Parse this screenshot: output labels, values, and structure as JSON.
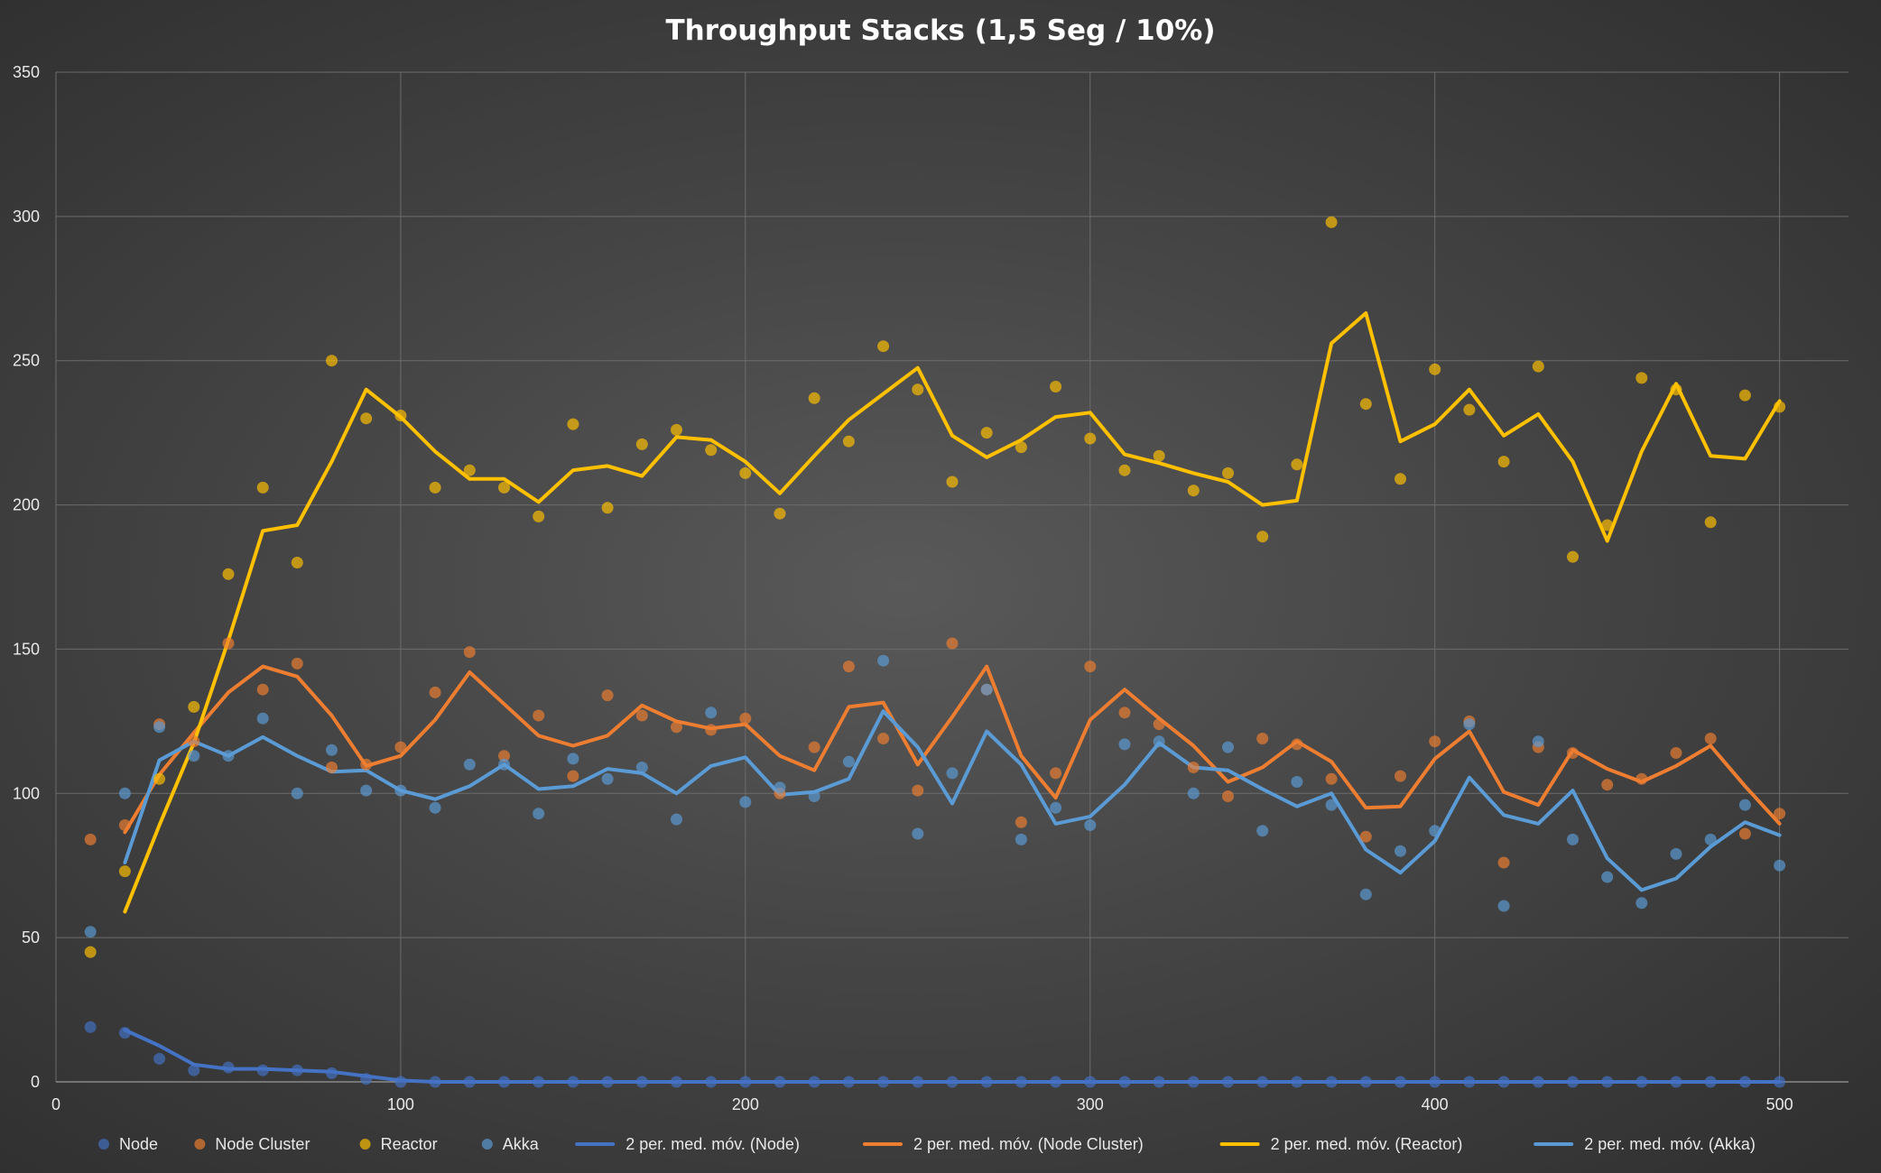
{
  "chart_data": {
    "type": "scatter",
    "title": "Throughput  Stacks (1,5 Seg / 10%)",
    "xlabel": "",
    "ylabel": "",
    "xlim": [
      0,
      520
    ],
    "ylim": [
      0,
      350
    ],
    "x_ticks": [
      0,
      100,
      200,
      300,
      400,
      500
    ],
    "y_ticks": [
      0,
      50,
      100,
      150,
      200,
      250,
      300,
      350
    ],
    "grid": true,
    "legend_position": "bottom",
    "x": [
      10,
      20,
      30,
      40,
      50,
      60,
      70,
      80,
      90,
      100,
      110,
      120,
      130,
      140,
      150,
      160,
      170,
      180,
      190,
      200,
      210,
      220,
      230,
      240,
      250,
      260,
      270,
      280,
      290,
      300,
      310,
      320,
      330,
      340,
      350,
      360,
      370,
      380,
      390,
      400,
      410,
      420,
      430,
      440,
      450,
      460,
      470,
      480,
      490,
      500
    ],
    "series": [
      {
        "name": "Node",
        "kind": "scatter",
        "color": "#4472c4",
        "values": [
          19,
          17,
          8,
          4,
          5,
          4,
          4,
          3,
          1,
          0,
          0,
          0,
          0,
          0,
          0,
          0,
          0,
          0,
          0,
          0,
          0,
          0,
          0,
          0,
          0,
          0,
          0,
          0,
          0,
          0,
          0,
          0,
          0,
          0,
          0,
          0,
          0,
          0,
          0,
          0,
          0,
          0,
          0,
          0,
          0,
          0,
          0,
          0,
          0,
          0
        ]
      },
      {
        "name": "Node Cluster",
        "kind": "scatter",
        "color": "#ed7d31",
        "values": [
          84,
          89,
          124,
          118,
          152,
          136,
          145,
          109,
          110,
          116,
          135,
          149,
          113,
          127,
          106,
          134,
          127,
          123,
          122,
          126,
          100,
          116,
          144,
          119,
          101,
          152,
          136,
          90,
          107,
          144,
          128,
          124,
          109,
          99,
          119,
          117,
          105,
          85,
          106,
          118,
          125,
          76,
          116,
          114,
          103,
          105,
          114,
          119,
          86,
          93
        ]
      },
      {
        "name": "Reactor",
        "kind": "scatter",
        "color": "#ffc000",
        "values": [
          45,
          73,
          105,
          130,
          176,
          206,
          180,
          250,
          230,
          231,
          206,
          212,
          206,
          196,
          228,
          199,
          221,
          226,
          219,
          211,
          197,
          237,
          222,
          255,
          240,
          208,
          225,
          220,
          241,
          223,
          212,
          217,
          205,
          211,
          189,
          214,
          298,
          235,
          209,
          247,
          233,
          215,
          248,
          182,
          193,
          244,
          240,
          194,
          238,
          234
        ]
      },
      {
        "name": "Akka",
        "kind": "scatter",
        "color": "#5b9bd5",
        "values": [
          52,
          100,
          123,
          113,
          113,
          126,
          100,
          115,
          101,
          101,
          95,
          110,
          110,
          93,
          112,
          105,
          109,
          91,
          128,
          97,
          102,
          99,
          111,
          146,
          86,
          107,
          136,
          84,
          95,
          89,
          117,
          118,
          100,
          116,
          87,
          104,
          96,
          65,
          80,
          87,
          124,
          61,
          118,
          84,
          71,
          62,
          79,
          84,
          96,
          75
        ]
      },
      {
        "name": "2 per. med. móv. (Node)",
        "kind": "line",
        "color": "#4472c4",
        "values": [
          null,
          18,
          12.5,
          6,
          4.5,
          4.5,
          4,
          3.5,
          2,
          0.5,
          0,
          0,
          0,
          0,
          0,
          0,
          0,
          0,
          0,
          0,
          0,
          0,
          0,
          0,
          0,
          0,
          0,
          0,
          0,
          0,
          0,
          0,
          0,
          0,
          0,
          0,
          0,
          0,
          0,
          0,
          0,
          0,
          0,
          0,
          0,
          0,
          0,
          0,
          0,
          0
        ]
      },
      {
        "name": "2 per. med. móv. (Node Cluster)",
        "kind": "line",
        "color": "#ed7d31",
        "values": [
          null,
          86.5,
          106.5,
          121,
          135,
          144,
          140.5,
          127,
          109.5,
          113,
          125.5,
          142,
          131,
          120,
          116.5,
          120,
          130.5,
          125,
          122.5,
          124,
          113,
          108,
          130,
          131.5,
          110,
          126.5,
          144,
          113,
          98.5,
          125.5,
          136,
          126,
          116.5,
          104,
          109,
          118,
          111,
          95,
          95.5,
          112,
          121.5,
          100.5,
          96,
          115,
          108.5,
          104,
          109.5,
          116.5,
          102.5,
          89.5
        ]
      },
      {
        "name": "2 per. med. móv. (Reactor)",
        "kind": "line",
        "color": "#ffc000",
        "values": [
          null,
          59,
          89,
          117.5,
          153,
          191,
          193,
          215,
          240,
          230.5,
          218.5,
          209,
          209,
          201,
          212,
          213.5,
          210,
          223.5,
          222.5,
          215,
          204,
          217,
          229.5,
          238.5,
          247.5,
          224,
          216.5,
          222.5,
          230.5,
          232,
          217.5,
          214.5,
          211,
          208,
          200,
          201.5,
          256,
          266.5,
          222,
          228,
          240,
          224,
          231.5,
          215,
          187.5,
          218.5,
          242,
          217,
          216,
          236
        ]
      },
      {
        "name": "2 per. med. móv. (Akka)",
        "kind": "line",
        "color": "#5b9bd5",
        "values": [
          null,
          76,
          111.5,
          118,
          113,
          119.5,
          113,
          107.5,
          108,
          101,
          98,
          102.5,
          110,
          101.5,
          102.5,
          108.5,
          107,
          100,
          109.5,
          112.5,
          99.5,
          100.5,
          105,
          128.5,
          116,
          96.5,
          121.5,
          110,
          89.5,
          92,
          103,
          117.5,
          109,
          108,
          101.5,
          95.5,
          100,
          80.5,
          72.5,
          83.5,
          105.5,
          92.5,
          89.5,
          101,
          77.5,
          66.5,
          70.5,
          81.5,
          90,
          85.5
        ]
      }
    ]
  }
}
